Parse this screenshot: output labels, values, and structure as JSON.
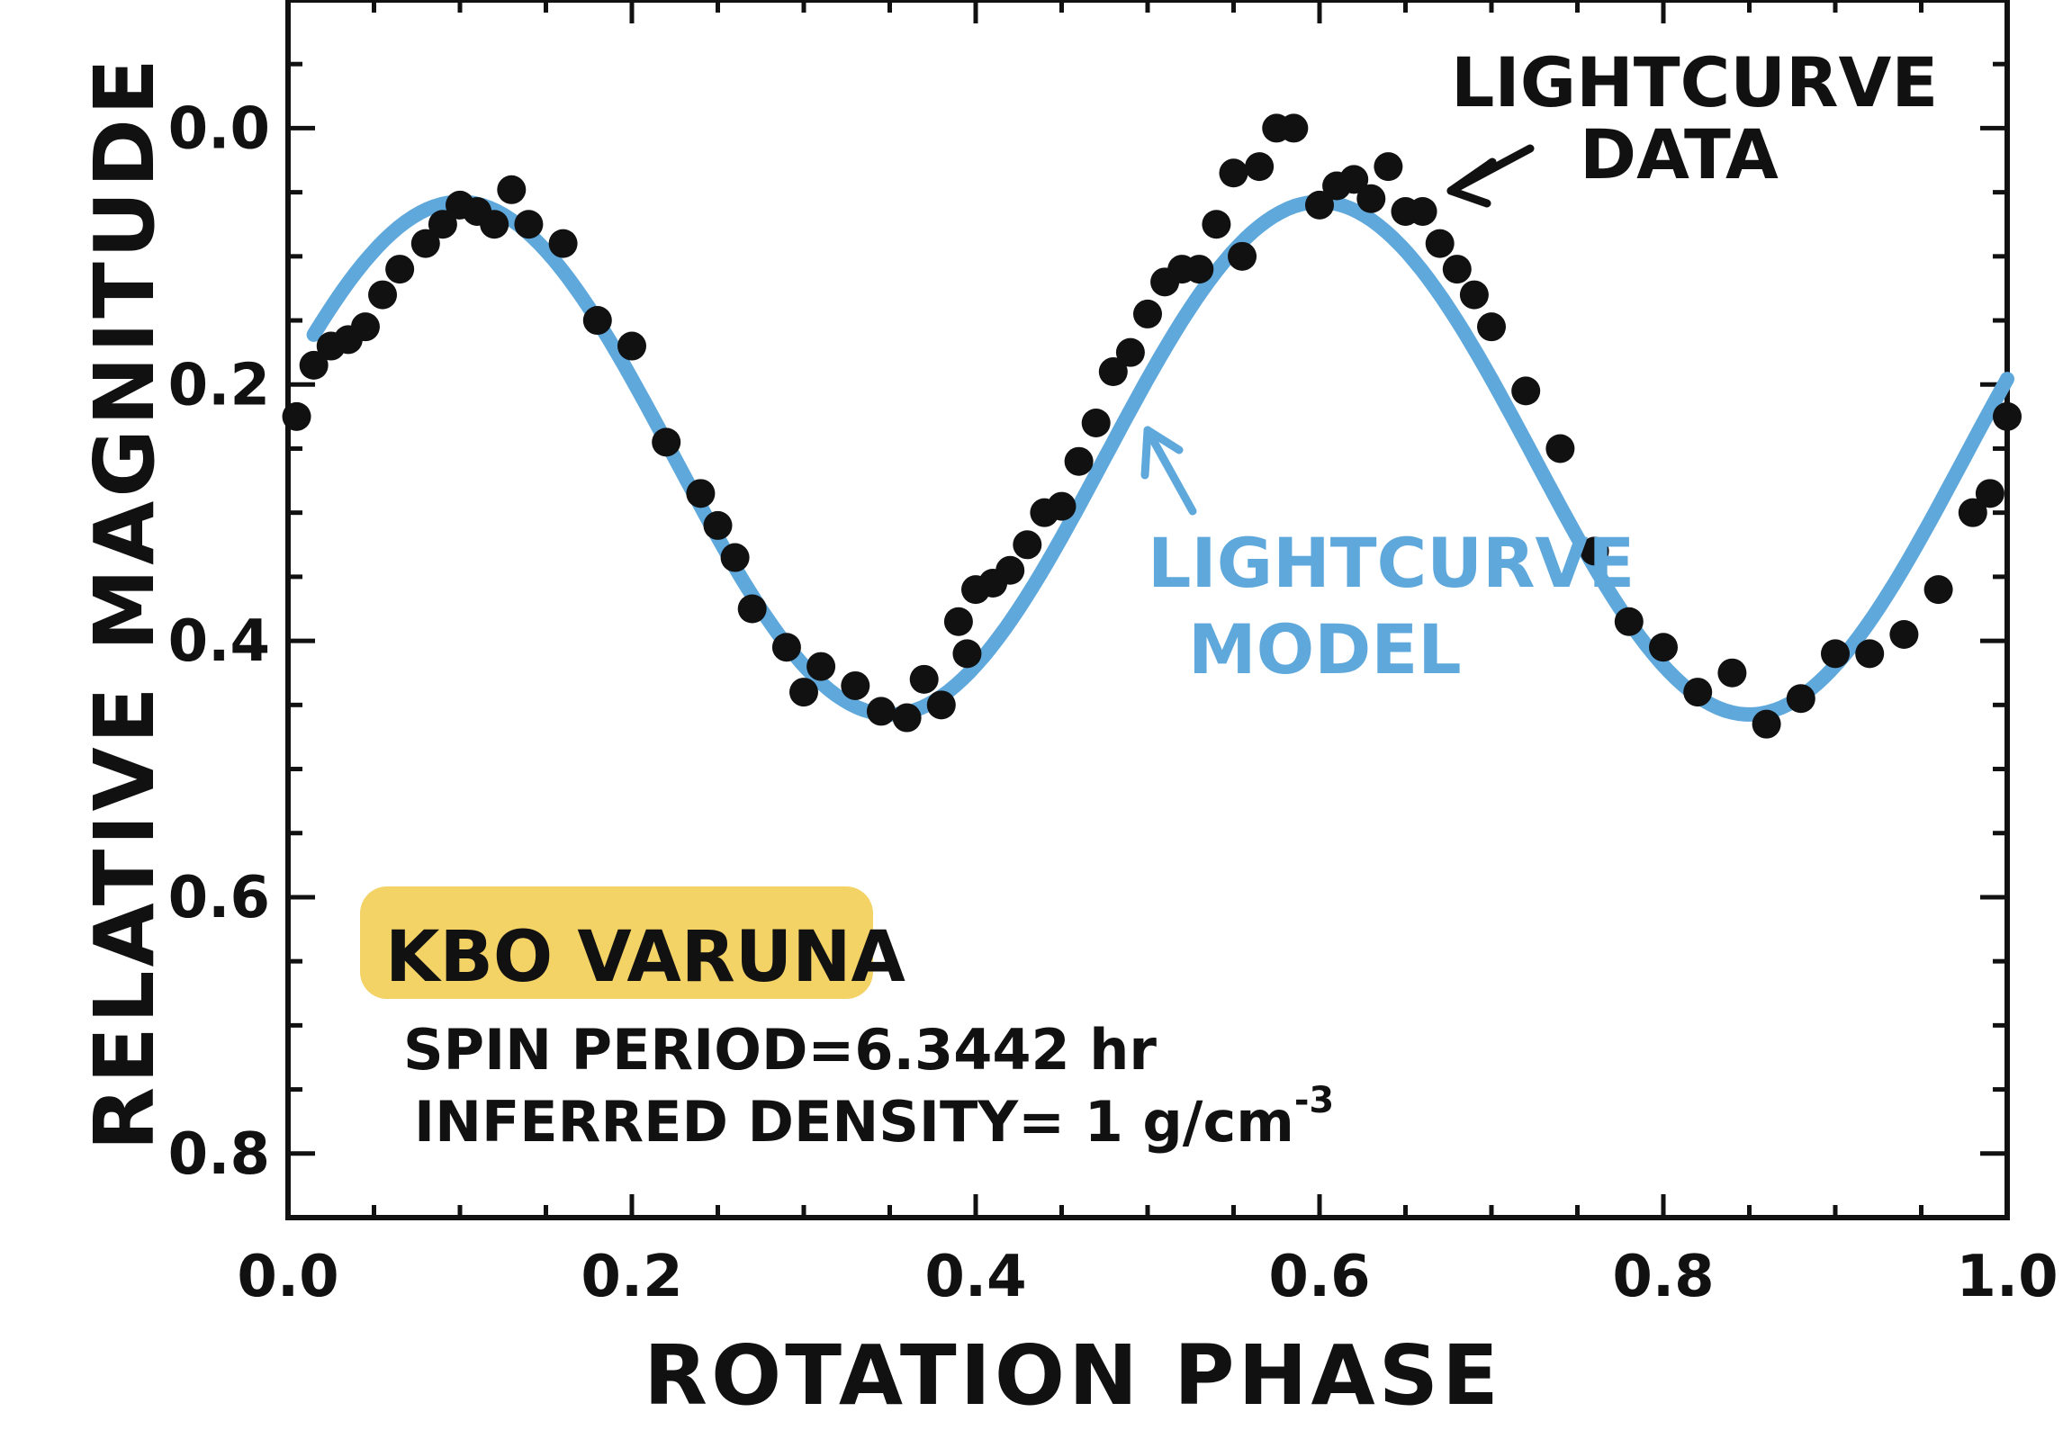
{
  "chart_data": {
    "type": "scatter",
    "xlabel": "ROTATION PHASE",
    "ylabel": "RELATIVE MAGNITUDE",
    "xlim": [
      0.0,
      1.0
    ],
    "ylim": [
      0.85,
      -0.1
    ],
    "y_inverted": true,
    "x_ticks": [
      "0.0",
      "0.2",
      "0.4",
      "0.6",
      "0.8",
      "1.0"
    ],
    "y_ticks": [
      "0.0",
      "0.2",
      "0.4",
      "0.6",
      "0.8"
    ],
    "series": [
      {
        "name": "LIGHTCURVE DATA",
        "kind": "points",
        "color": "#111111",
        "x": [
          0.005,
          0.015,
          0.025,
          0.035,
          0.045,
          0.055,
          0.065,
          0.08,
          0.09,
          0.1,
          0.11,
          0.12,
          0.13,
          0.14,
          0.16,
          0.18,
          0.2,
          0.22,
          0.24,
          0.25,
          0.26,
          0.27,
          0.29,
          0.3,
          0.31,
          0.33,
          0.345,
          0.36,
          0.37,
          0.38,
          0.39,
          0.395,
          0.4,
          0.41,
          0.42,
          0.43,
          0.44,
          0.45,
          0.46,
          0.47,
          0.48,
          0.49,
          0.5,
          0.51,
          0.52,
          0.53,
          0.54,
          0.55,
          0.555,
          0.565,
          0.575,
          0.585,
          0.6,
          0.61,
          0.62,
          0.63,
          0.64,
          0.65,
          0.66,
          0.67,
          0.68,
          0.69,
          0.7,
          0.72,
          0.74,
          0.76,
          0.78,
          0.8,
          0.82,
          0.84,
          0.86,
          0.88,
          0.9,
          0.92,
          0.94,
          0.96,
          0.98,
          0.99,
          1.0
        ],
        "y": [
          0.225,
          0.185,
          0.17,
          0.165,
          0.155,
          0.13,
          0.11,
          0.09,
          0.075,
          0.06,
          0.065,
          0.075,
          0.048,
          0.075,
          0.09,
          0.15,
          0.17,
          0.245,
          0.285,
          0.31,
          0.335,
          0.375,
          0.405,
          0.44,
          0.42,
          0.435,
          0.455,
          0.46,
          0.43,
          0.45,
          0.385,
          0.41,
          0.36,
          0.355,
          0.345,
          0.325,
          0.3,
          0.295,
          0.26,
          0.23,
          0.19,
          0.175,
          0.145,
          0.12,
          0.11,
          0.11,
          0.075,
          0.035,
          0.1,
          0.03,
          0.0,
          0.0,
          0.06,
          0.045,
          0.04,
          0.055,
          0.03,
          0.065,
          0.065,
          0.09,
          0.11,
          0.13,
          0.155,
          0.205,
          0.25,
          0.33,
          0.385,
          0.405,
          0.44,
          0.425,
          0.465,
          0.445,
          0.41,
          0.41,
          0.395,
          0.36,
          0.3,
          0.285,
          0.225
        ]
      },
      {
        "name": "LIGHTCURVE MODEL",
        "kind": "line",
        "color": "#5fa8dc",
        "function": "0.2575 - 0.2 * cos(4*pi*(x - 0.1))",
        "x_range": [
          0.015,
          1.0
        ]
      }
    ],
    "annotations": [
      {
        "text_lines": [
          "LIGHTCURVE",
          "DATA"
        ],
        "color": "#111111",
        "points_to": [
          0.67,
          0.06
        ]
      },
      {
        "text_lines": [
          "LIGHTCURVE",
          "MODEL"
        ],
        "color": "#5fa8dc",
        "points_to": [
          0.495,
          0.235
        ]
      }
    ],
    "info_box": {
      "title": "KBO VARUNA",
      "highlight_color": "#f2cd55",
      "line1": "SPIN PERIOD=6.3442 hr",
      "line2_prefix": "INFERRED DENSITY= 1 g/cm",
      "line2_sup": "-3"
    }
  }
}
